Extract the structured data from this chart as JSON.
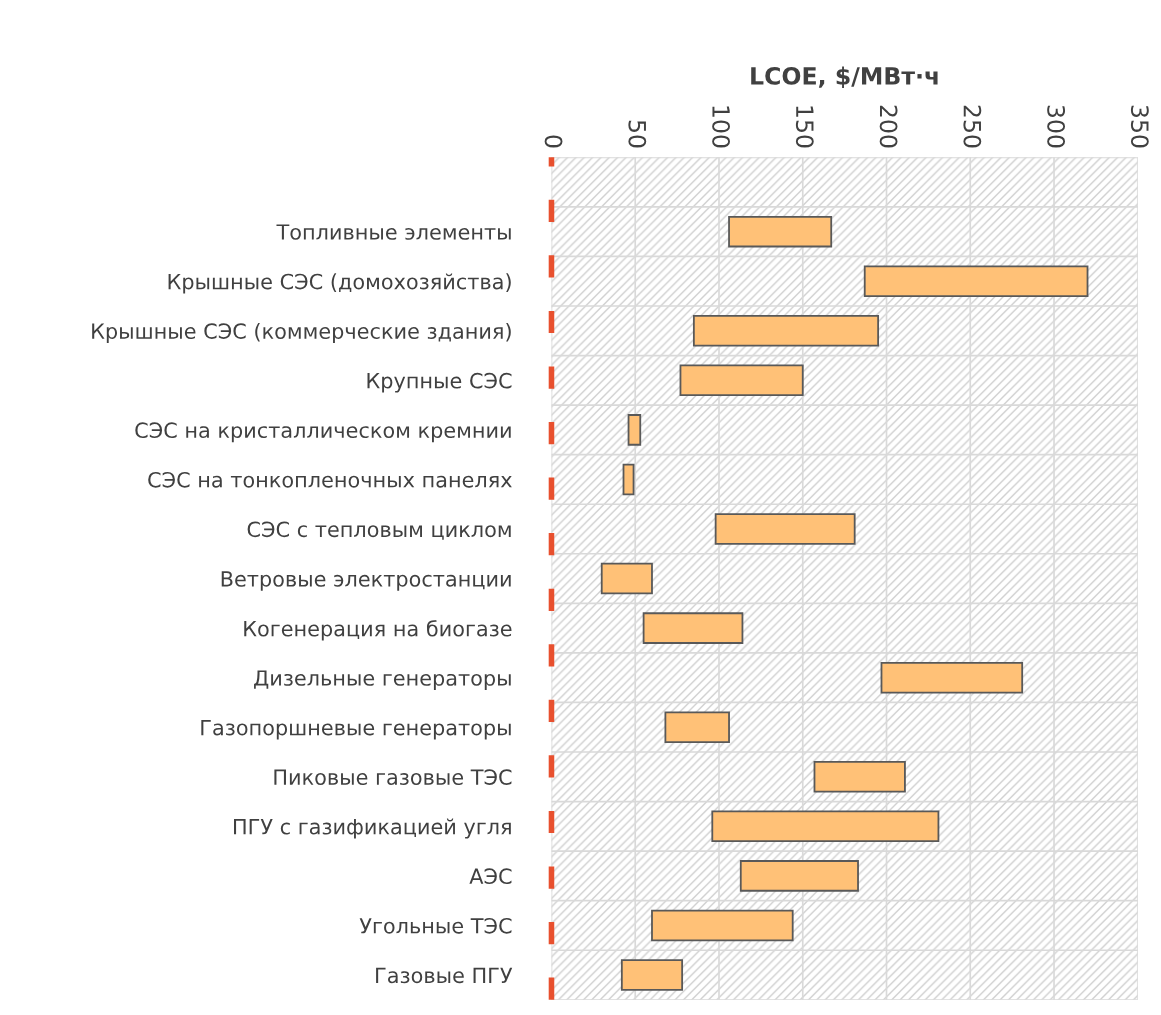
{
  "chart_data": {
    "type": "bar",
    "orientation": "horizontal",
    "xlabel": "LCOE, $/МВт·ч",
    "categories": [
      null,
      "Топливные элементы",
      "Крышные СЭС (домохозяйства)",
      "Крышные СЭС (коммерческие здания)",
      "Крупные СЭС",
      "СЭС на кристаллическом кремнии",
      "СЭС на тонкопленочных панелях",
      "СЭС с тепловым циклом",
      "Ветровые электростанции",
      "Когенерация на биогазе",
      "Дизельные генераторы",
      "Газопоршневые генераторы",
      "Пиковые газовые ТЭС",
      "ПГУ с газификацией угля",
      "АЭС",
      "Угольные ТЭС",
      "Газовые ПГУ"
    ],
    "base": [
      null,
      106,
      187,
      85,
      77,
      46,
      43,
      98,
      30,
      55,
      197,
      68,
      157,
      96,
      113,
      60,
      42
    ],
    "values": [
      null,
      61,
      133,
      110,
      73,
      7,
      6,
      83,
      30,
      59,
      84,
      38,
      54,
      135,
      70,
      84,
      36
    ],
    "color": "#ffc177",
    "xlim": [
      0,
      350
    ],
    "xticks": [
      0,
      50,
      100,
      150,
      200,
      250,
      300,
      350
    ],
    "grid": true,
    "ref_lines": [
      {
        "axis": "x",
        "value": 0,
        "color": "#e8502e",
        "line_style": "dashed"
      }
    ]
  }
}
